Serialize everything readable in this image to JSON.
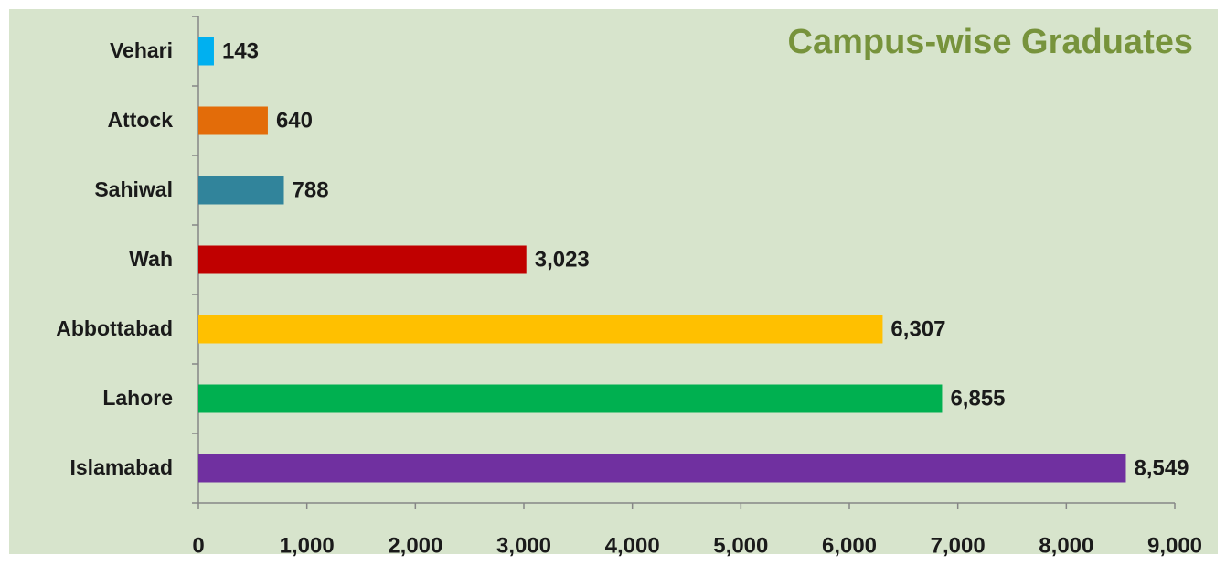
{
  "chart_data": {
    "type": "bar",
    "orientation": "horizontal",
    "title": "Campus-wise Graduates",
    "categories": [
      "Vehari",
      "Attock",
      "Sahiwal",
      "Wah",
      "Abbottabad",
      "Lahore",
      "Islamabad"
    ],
    "values": [
      143,
      640,
      788,
      3023,
      6307,
      6855,
      8549
    ],
    "value_labels": [
      "143",
      "640",
      "788",
      "3,023",
      "6,307",
      "6,855",
      "8,549"
    ],
    "colors": [
      "#00b0f0",
      "#e36c09",
      "#31849b",
      "#c00000",
      "#ffc000",
      "#00b050",
      "#7030a0"
    ],
    "xlim": [
      0,
      9000
    ],
    "xticks": [
      0,
      {
        "value": 1000,
        "label": "1,000"
      },
      {
        "value": 2000,
        "label": "2,000"
      },
      {
        "value": 3000,
        "label": "3,000"
      },
      {
        "value": 4000,
        "label": "4,000"
      },
      {
        "value": 5000,
        "label": "5,000"
      },
      {
        "value": 6000,
        "label": "6,000"
      },
      {
        "value": 7000,
        "label": "7,000"
      },
      {
        "value": 8000,
        "label": "8,000"
      },
      {
        "value": 9000,
        "label": "9,000"
      }
    ],
    "grid": false
  }
}
